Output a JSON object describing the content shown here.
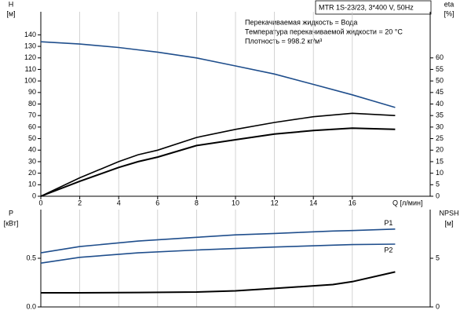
{
  "chart_data": [
    {
      "type": "line",
      "info": "MTR 1S-23/23, 3*400 V, 50Hz",
      "annotations": [
        "Перекачиваемая жидкость = Вода",
        "Температура перекачиваемой жидкости = 20 °C",
        "Плотность = 998.2 кг/м³"
      ],
      "ylabel": "H",
      "ylabel_unit": "[м]",
      "y2label": "eta",
      "y2label_unit": "[%]",
      "xlabel": "Q [л/мин]",
      "x": [
        0,
        2,
        4,
        5,
        6,
        8,
        10,
        12,
        14,
        16,
        18.2
      ],
      "xlim": [
        0,
        20
      ],
      "xticks": [
        0,
        2,
        4,
        6,
        8,
        10,
        12,
        14,
        16
      ],
      "ylim": [
        0,
        160
      ],
      "yticks": [
        0,
        10,
        20,
        30,
        40,
        50,
        60,
        70,
        80,
        90,
        100,
        110,
        120,
        130,
        140
      ],
      "y2lim": [
        0,
        80
      ],
      "y2ticks": [
        0,
        5,
        10,
        15,
        20,
        25,
        30,
        35,
        40,
        45,
        50,
        55,
        60
      ],
      "grid": "x",
      "series": [
        {
          "color": "#1f4e8c",
          "values": [
            134,
            132,
            129,
            127,
            125,
            120,
            113,
            106,
            97,
            88,
            77
          ]
        },
        {
          "color": "#000000",
          "axis": "y2",
          "values": [
            0,
            8,
            15,
            18,
            20,
            25.5,
            29,
            32,
            34.5,
            36,
            35
          ]
        },
        {
          "color": "#000000",
          "axis": "y2",
          "values": [
            0,
            6.5,
            12.5,
            15,
            17,
            22,
            24.5,
            27,
            28.5,
            29.5,
            29
          ]
        }
      ]
    },
    {
      "type": "line",
      "ylabel": "P",
      "ylabel_unit": "[кВт]",
      "y2label": "NPSH",
      "y2label_unit": "[м]",
      "x": [
        0,
        2,
        5,
        8,
        10,
        12,
        15,
        16,
        18.2
      ],
      "xlim": [
        0,
        20
      ],
      "ylim": [
        0,
        1.0
      ],
      "yticks": [
        {
          "value": 0,
          "label": "0.0"
        },
        {
          "value": 0.5,
          "label": "0.5"
        }
      ],
      "y2lim": [
        0,
        10
      ],
      "y2ticks": [
        0,
        5
      ],
      "grid": "x",
      "series": [
        {
          "name": "P1",
          "color": "#1f4e8c",
          "values": [
            0.556,
            0.62,
            0.677,
            0.715,
            0.74,
            0.755,
            0.78,
            0.785,
            0.8
          ]
        },
        {
          "name": "P2",
          "color": "#1f4e8c",
          "values": [
            0.45,
            0.51,
            0.556,
            0.585,
            0.6,
            0.615,
            0.635,
            0.64,
            0.645
          ]
        },
        {
          "color": "#000000",
          "axis": "y2",
          "values": [
            1.45,
            1.45,
            1.48,
            1.53,
            1.65,
            1.9,
            2.3,
            2.6,
            3.6
          ]
        }
      ]
    }
  ]
}
